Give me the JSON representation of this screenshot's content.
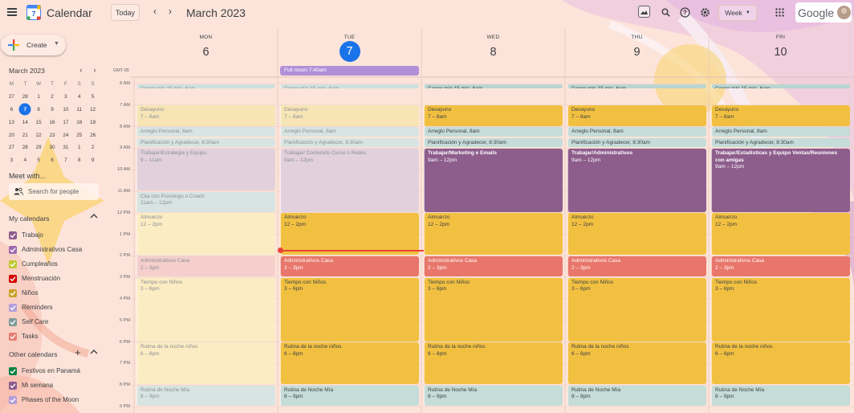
{
  "header": {
    "app_title": "Calendar",
    "today_label": "Today",
    "period_title": "March 2023",
    "view_label": "Week",
    "logo_day": "7",
    "brand_word": "Google"
  },
  "sidebar": {
    "create_label": "Create",
    "mini_calendar": {
      "title": "March 2023",
      "weekdays": [
        "M",
        "T",
        "W",
        "T",
        "F",
        "S",
        "S"
      ],
      "weeks": [
        [
          "27",
          "28",
          "1",
          "2",
          "3",
          "4",
          "5"
        ],
        [
          "6",
          "7",
          "8",
          "9",
          "10",
          "11",
          "12"
        ],
        [
          "13",
          "14",
          "15",
          "16",
          "17",
          "18",
          "19"
        ],
        [
          "20",
          "21",
          "22",
          "23",
          "24",
          "25",
          "26"
        ],
        [
          "27",
          "28",
          "29",
          "30",
          "31",
          "1",
          "2"
        ],
        [
          "3",
          "4",
          "5",
          "6",
          "7",
          "8",
          "9"
        ]
      ],
      "today": "7"
    },
    "meet_with_title": "Meet with...",
    "search_people_placeholder": "Search for people",
    "my_calendars_title": "My calendars",
    "my_calendars": [
      {
        "label": "Trabajo",
        "color": "#8e5c8e"
      },
      {
        "label": "Administrativos Casa",
        "color": "#9e69af"
      },
      {
        "label": "Cumpleaños",
        "color": "#c0ca33"
      },
      {
        "label": "Menstruación",
        "color": "#d50000"
      },
      {
        "label": "Niños",
        "color": "#c9a227"
      },
      {
        "label": "Reminders",
        "color": "#b39ddb"
      },
      {
        "label": "Self Care",
        "color": "#7d9c9c"
      },
      {
        "label": "Tasks",
        "color": "#e67c73"
      }
    ],
    "other_calendars_title": "Other calendars",
    "other_calendars": [
      {
        "label": "Festivos en Panamá",
        "color": "#0b8043"
      },
      {
        "label": "Mi semana",
        "color": "#8e5c8e"
      },
      {
        "label": "Phases of the Moon",
        "color": "#b39ddb"
      }
    ]
  },
  "week": {
    "timezone_label": "GMT-05",
    "days": [
      {
        "name": "MON",
        "number": "6",
        "is_today": false
      },
      {
        "name": "TUE",
        "number": "7",
        "is_today": true
      },
      {
        "name": "WED",
        "number": "8",
        "is_today": false
      },
      {
        "name": "THU",
        "number": "9",
        "is_today": false
      },
      {
        "name": "FRI",
        "number": "10",
        "is_today": false
      }
    ],
    "hours": [
      "6 AM",
      "7 AM",
      "8 AM",
      "9 AM",
      "10 AM",
      "11 AM",
      "12 PM",
      "1 PM",
      "2 PM",
      "3 PM",
      "4 PM",
      "5 PM",
      "6 PM",
      "7 PM",
      "8 PM",
      "9 PM"
    ],
    "all_day_events": [
      {
        "day": 1,
        "title": "Full moon 7:40am"
      }
    ],
    "events": [
      {
        "day": 0,
        "start": 6.0,
        "end": 6.25,
        "title": "Correr min 15 min",
        "time": "6am",
        "color": "#cfe0de",
        "inline": true
      },
      {
        "day": 0,
        "start": 7.0,
        "end": 8.0,
        "title": "Desayuno",
        "time": "7 – 8am",
        "color": "#f7e5b5"
      },
      {
        "day": 0,
        "start": 8.0,
        "end": 8.5,
        "title": "Arreglo Personal",
        "time": "8am",
        "color": "#d8e4e1",
        "inline": true
      },
      {
        "day": 0,
        "start": 8.5,
        "end": 9.0,
        "title": "Planificación y Agradecer",
        "time": "8:30am",
        "color": "#d8e4e1",
        "inline": true
      },
      {
        "day": 0,
        "start": 9.0,
        "end": 11.0,
        "title": "Trabajar/Estrategia y Equipo",
        "time": "9 – 11am",
        "color": "#e2d1dc"
      },
      {
        "day": 0,
        "start": 11.0,
        "end": 12.0,
        "title": "Cita con Psicólogo o Coach",
        "time": "11am – 12pm",
        "color": "#d8e4e1"
      },
      {
        "day": 0,
        "start": 12.0,
        "end": 14.0,
        "title": "Almuerzo",
        "time": "12 – 2pm",
        "color": "#fcecc3"
      },
      {
        "day": 0,
        "start": 14.0,
        "end": 15.0,
        "title": "Administrativos Casa",
        "time": "2 – 3pm",
        "color": "#f4cfcb"
      },
      {
        "day": 0,
        "start": 15.0,
        "end": 18.0,
        "title": "Tiempo con Niños",
        "time": "3 – 6pm",
        "color": "#fcecc3"
      },
      {
        "day": 0,
        "start": 18.0,
        "end": 20.0,
        "title": "Rutina de la noche niños",
        "time": "6 – 8pm",
        "color": "#fcecc3"
      },
      {
        "day": 0,
        "start": 20.0,
        "end": 21.0,
        "title": "Rutina de Noche Mía",
        "time": "8 – 9pm",
        "color": "#d8e4e1"
      },
      {
        "day": 1,
        "start": 6.0,
        "end": 6.25,
        "title": "Correr min 15 min",
        "time": "6am",
        "color": "#cfe0de",
        "inline": true
      },
      {
        "day": 1,
        "start": 7.0,
        "end": 8.0,
        "title": "Desayuno",
        "time": "7 – 8am",
        "color": "#f7e5b5"
      },
      {
        "day": 1,
        "start": 8.0,
        "end": 8.5,
        "title": "Arreglo Personal",
        "time": "8am",
        "color": "#d8e4e1",
        "inline": true
      },
      {
        "day": 1,
        "start": 8.5,
        "end": 9.0,
        "title": "Planificación y Agradecer",
        "time": "8:30am",
        "color": "#d8e4e1",
        "inline": true
      },
      {
        "day": 1,
        "start": 9.0,
        "end": 12.0,
        "title": "Trabajar/ Contenido Curso o Redes",
        "time": "9am – 12pm",
        "color": "#e2d1dc"
      },
      {
        "day": 1,
        "start": 12.0,
        "end": 14.0,
        "title": "Almuerzo",
        "time": "12 – 2pm",
        "color": "#f2c041",
        "solid": true
      },
      {
        "day": 1,
        "start": 14.0,
        "end": 15.0,
        "title": "Administrativos Casa",
        "time": "2 – 3pm",
        "color": "#e8766b",
        "solid": true,
        "light": true
      },
      {
        "day": 1,
        "start": 15.0,
        "end": 18.0,
        "title": "Tiempo con Niños",
        "time": "3 – 6pm",
        "color": "#f2c041",
        "solid": true
      },
      {
        "day": 1,
        "start": 18.0,
        "end": 20.0,
        "title": "Rutina de la noche niños",
        "time": "6 – 8pm",
        "color": "#f2c041",
        "solid": true
      },
      {
        "day": 1,
        "start": 20.0,
        "end": 21.0,
        "title": "Rutina de Noche Mía",
        "time": "8 – 9pm",
        "color": "#c5dcd8",
        "solid": true
      },
      {
        "day": 2,
        "start": 6.0,
        "end": 6.25,
        "title": "Correr min 15 min",
        "time": "6am",
        "color": "#b9d5d1",
        "inline": true
      },
      {
        "day": 2,
        "start": 7.0,
        "end": 8.0,
        "title": "Desayuno",
        "time": "7 – 8am",
        "color": "#f2c041"
      },
      {
        "day": 2,
        "start": 8.0,
        "end": 8.5,
        "title": "Arreglo Personal",
        "time": "8am",
        "color": "#c5dcd8",
        "inline": true
      },
      {
        "day": 2,
        "start": 8.5,
        "end": 9.0,
        "title": "Planificación y Agradecer",
        "time": "8:30am",
        "color": "#c5dcd8",
        "inline": true
      },
      {
        "day": 2,
        "start": 9.0,
        "end": 12.0,
        "title": "Trabajar/Marketing e Emails",
        "time": "9am – 12pm",
        "color": "#8d5d8c",
        "light": true,
        "boldtitle": true
      },
      {
        "day": 2,
        "start": 12.0,
        "end": 14.0,
        "title": "Almuerzo",
        "time": "12 – 2pm",
        "color": "#f2c041"
      },
      {
        "day": 2,
        "start": 14.0,
        "end": 15.0,
        "title": "Administrativos Casa",
        "time": "2 – 3pm",
        "color": "#e8766b",
        "light": true
      },
      {
        "day": 2,
        "start": 15.0,
        "end": 18.0,
        "title": "Tiempo con Niños",
        "time": "3 – 6pm",
        "color": "#f2c041"
      },
      {
        "day": 2,
        "start": 18.0,
        "end": 20.0,
        "title": "Rutina de la noche niños",
        "time": "6 – 8pm",
        "color": "#f2c041"
      },
      {
        "day": 2,
        "start": 20.0,
        "end": 21.0,
        "title": "Rutina de Noche Mía",
        "time": "8 – 9pm",
        "color": "#c5dcd8"
      },
      {
        "day": 3,
        "start": 6.0,
        "end": 6.25,
        "title": "Correr min 15 min",
        "time": "6am",
        "color": "#b9d5d1",
        "inline": true
      },
      {
        "day": 3,
        "start": 7.0,
        "end": 8.0,
        "title": "Desayuno",
        "time": "7 – 8am",
        "color": "#f2c041"
      },
      {
        "day": 3,
        "start": 8.0,
        "end": 8.5,
        "title": "Arreglo Personal",
        "time": "8am",
        "color": "#c5dcd8",
        "inline": true
      },
      {
        "day": 3,
        "start": 8.5,
        "end": 9.0,
        "title": "Planificación y Agradecer",
        "time": "8:30am",
        "color": "#c5dcd8",
        "inline": true
      },
      {
        "day": 3,
        "start": 9.0,
        "end": 12.0,
        "title": "Trabajar/Administrativos",
        "time": "9am – 12pm",
        "color": "#8d5d8c",
        "light": true,
        "boldtitle": true
      },
      {
        "day": 3,
        "start": 12.0,
        "end": 14.0,
        "title": "Almuerzo",
        "time": "12 – 2pm",
        "color": "#f2c041"
      },
      {
        "day": 3,
        "start": 14.0,
        "end": 15.0,
        "title": "Administrativos Casa",
        "time": "2 – 3pm",
        "color": "#e8766b",
        "light": true
      },
      {
        "day": 3,
        "start": 15.0,
        "end": 18.0,
        "title": "Tiempo con Niños",
        "time": "3 – 6pm",
        "color": "#f2c041"
      },
      {
        "day": 3,
        "start": 18.0,
        "end": 20.0,
        "title": "Rutina de la noche niños",
        "time": "6 – 8pm",
        "color": "#f2c041"
      },
      {
        "day": 3,
        "start": 20.0,
        "end": 21.0,
        "title": "Rutina de Noche Mía",
        "time": "8 – 9pm",
        "color": "#c5dcd8"
      },
      {
        "day": 4,
        "start": 6.0,
        "end": 6.25,
        "title": "Correr min 15 min",
        "time": "6am",
        "color": "#b9d5d1",
        "inline": true
      },
      {
        "day": 4,
        "start": 7.0,
        "end": 8.0,
        "title": "Desayuno",
        "time": "7 – 8am",
        "color": "#f2c041"
      },
      {
        "day": 4,
        "start": 8.0,
        "end": 8.5,
        "title": "Arreglo Personal",
        "time": "8am",
        "color": "#c5dcd8",
        "inline": true
      },
      {
        "day": 4,
        "start": 8.5,
        "end": 9.0,
        "title": "Planificación y Agradecer",
        "time": "8:30am",
        "color": "#c5dcd8",
        "inline": true
      },
      {
        "day": 4,
        "start": 9.0,
        "end": 12.0,
        "title": "Trabajar/Estadisticas y Equipo Ventas/Reuniones con amigas",
        "time": "9am – 12pm",
        "color": "#8d5d8c",
        "light": true,
        "boldtitle": true
      },
      {
        "day": 4,
        "start": 12.0,
        "end": 14.0,
        "title": "Almuerzo",
        "time": "12 – 2pm",
        "color": "#f2c041"
      },
      {
        "day": 4,
        "start": 14.0,
        "end": 15.0,
        "title": "Administrativos Casa",
        "time": "2 – 3pm",
        "color": "#e8766b",
        "light": true
      },
      {
        "day": 4,
        "start": 15.0,
        "end": 18.0,
        "title": "Tiempo con Niños",
        "time": "3 – 6pm",
        "color": "#f2c041"
      },
      {
        "day": 4,
        "start": 18.0,
        "end": 20.0,
        "title": "Rutina de la noche niños",
        "time": "6 – 8pm",
        "color": "#f2c041"
      },
      {
        "day": 4,
        "start": 20.0,
        "end": 21.0,
        "title": "Rutina de Noche Mía",
        "time": "8 – 9pm",
        "color": "#c5dcd8"
      }
    ]
  }
}
